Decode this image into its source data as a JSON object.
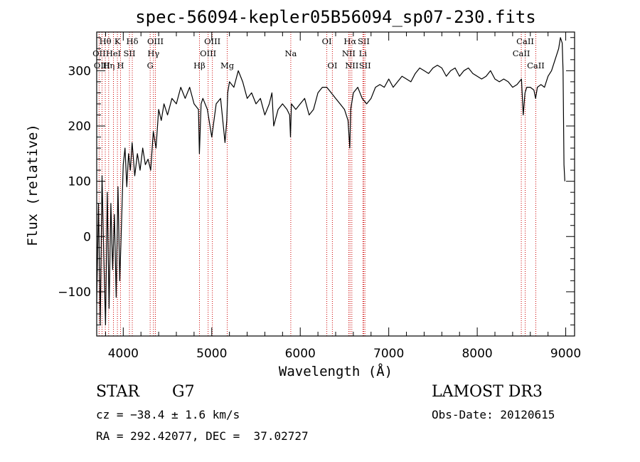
{
  "chart_data": {
    "type": "line",
    "title": "spec-56094-kepler05B56094_sp07-230.fits",
    "xlabel": "Wavelength (Å)",
    "ylabel": "Flux (relative)",
    "xlim": [
      3700,
      9100
    ],
    "ylim": [
      -180,
      370
    ],
    "xticks": [
      4000,
      5000,
      6000,
      7000,
      8000,
      9000
    ],
    "yticks": [
      -100,
      0,
      100,
      200,
      300
    ],
    "ytick_labels": [
      "−100",
      "0",
      "100",
      "200",
      "300"
    ],
    "series": [
      {
        "name": "flux",
        "x": [
          3700,
          3720,
          3740,
          3760,
          3780,
          3800,
          3820,
          3840,
          3860,
          3880,
          3900,
          3920,
          3940,
          3960,
          3980,
          4000,
          4020,
          4040,
          4060,
          4080,
          4100,
          4130,
          4160,
          4190,
          4220,
          4250,
          4280,
          4310,
          4340,
          4370,
          4400,
          4430,
          4460,
          4500,
          4550,
          4600,
          4650,
          4700,
          4750,
          4800,
          4850,
          4860,
          4880,
          4900,
          4950,
          5000,
          5050,
          5100,
          5150,
          5170,
          5180,
          5200,
          5250,
          5300,
          5350,
          5400,
          5450,
          5500,
          5550,
          5600,
          5650,
          5680,
          5700,
          5750,
          5800,
          5850,
          5880,
          5890,
          5900,
          5950,
          6000,
          6050,
          6100,
          6150,
          6200,
          6250,
          6300,
          6350,
          6400,
          6450,
          6500,
          6540,
          6560,
          6570,
          6600,
          6650,
          6700,
          6750,
          6800,
          6850,
          6900,
          6950,
          7000,
          7050,
          7100,
          7150,
          7200,
          7250,
          7300,
          7350,
          7400,
          7450,
          7500,
          7550,
          7600,
          7650,
          7700,
          7750,
          7800,
          7850,
          7900,
          7950,
          8000,
          8050,
          8100,
          8150,
          8200,
          8250,
          8300,
          8350,
          8400,
          8450,
          8500,
          8520,
          8540,
          8560,
          8600,
          8640,
          8660,
          8680,
          8720,
          8760,
          8800,
          8840,
          8880,
          8920,
          8940,
          8960,
          8970,
          8980,
          8990
        ],
        "y": [
          -120,
          60,
          -160,
          110,
          -40,
          -160,
          80,
          -130,
          60,
          -60,
          40,
          -110,
          90,
          -80,
          20,
          130,
          160,
          90,
          150,
          120,
          170,
          110,
          150,
          120,
          160,
          130,
          140,
          120,
          190,
          160,
          230,
          210,
          240,
          220,
          250,
          240,
          270,
          250,
          270,
          240,
          230,
          150,
          240,
          250,
          230,
          180,
          240,
          250,
          170,
          210,
          260,
          280,
          270,
          300,
          280,
          250,
          260,
          240,
          250,
          220,
          240,
          260,
          200,
          230,
          240,
          230,
          220,
          180,
          240,
          230,
          240,
          250,
          220,
          230,
          260,
          270,
          270,
          260,
          250,
          240,
          230,
          210,
          160,
          230,
          260,
          270,
          250,
          240,
          250,
          270,
          275,
          270,
          285,
          270,
          280,
          290,
          285,
          280,
          295,
          305,
          300,
          295,
          305,
          310,
          305,
          290,
          300,
          305,
          290,
          300,
          305,
          295,
          290,
          285,
          290,
          300,
          285,
          280,
          285,
          280,
          270,
          275,
          285,
          220,
          260,
          270,
          270,
          265,
          250,
          270,
          275,
          270,
          290,
          300,
          320,
          340,
          360,
          350,
          300,
          130,
          100
        ]
      }
    ],
    "annotation_lines": [
      {
        "label": "Hθ",
        "x": 3797,
        "row": 0
      },
      {
        "label": "OII",
        "x": 3727,
        "row": 1
      },
      {
        "label": "OIII",
        "x": 3760,
        "row": 2
      },
      {
        "label": "Hη",
        "x": 3835,
        "row": 2
      },
      {
        "label": "K",
        "x": 3934,
        "row": 0
      },
      {
        "label": "HeI",
        "x": 3889,
        "row": 1
      },
      {
        "label": "SII",
        "x": 4070,
        "row": 1
      },
      {
        "label": "H",
        "x": 3969,
        "row": 2
      },
      {
        "label": "Hδ",
        "x": 4102,
        "row": 0
      },
      {
        "label": "OIII",
        "x": 4363,
        "row": 0
      },
      {
        "label": "Hγ",
        "x": 4341,
        "row": 1
      },
      {
        "label": "G",
        "x": 4304,
        "row": 2
      },
      {
        "label": "Hβ",
        "x": 4861,
        "row": 2
      },
      {
        "label": "OIII",
        "x": 5007,
        "row": 0
      },
      {
        "label": "OIII",
        "x": 4959,
        "row": 1
      },
      {
        "label": "Mg",
        "x": 5175,
        "row": 2
      },
      {
        "label": "Na",
        "x": 5893,
        "row": 1
      },
      {
        "label": "OI",
        "x": 6300,
        "row": 0
      },
      {
        "label": "OI",
        "x": 6363,
        "row": 2
      },
      {
        "label": "Hα",
        "x": 6563,
        "row": 0
      },
      {
        "label": "NII",
        "x": 6548,
        "row": 1
      },
      {
        "label": "NII",
        "x": 6583,
        "row": 2
      },
      {
        "label": "SII",
        "x": 6717,
        "row": 0
      },
      {
        "label": "Li",
        "x": 6708,
        "row": 1
      },
      {
        "label": "SII",
        "x": 6731,
        "row": 2
      },
      {
        "label": "CaII",
        "x": 8542,
        "row": 0
      },
      {
        "label": "CaII",
        "x": 8498,
        "row": 1
      },
      {
        "label": "CaII",
        "x": 8662,
        "row": 2
      }
    ],
    "colors": {
      "spectrum": "#000000",
      "lines": "#cc0000",
      "axes": "#000000"
    }
  },
  "info": {
    "object_class": "STAR",
    "subclass": "G7",
    "survey": "LAMOST DR3",
    "redshift": "cz = −38.4 ± 1.6 km/s",
    "obs_date": "Obs-Date: 20120615",
    "coords": "RA = 292.42077, DEC =  37.02727"
  }
}
